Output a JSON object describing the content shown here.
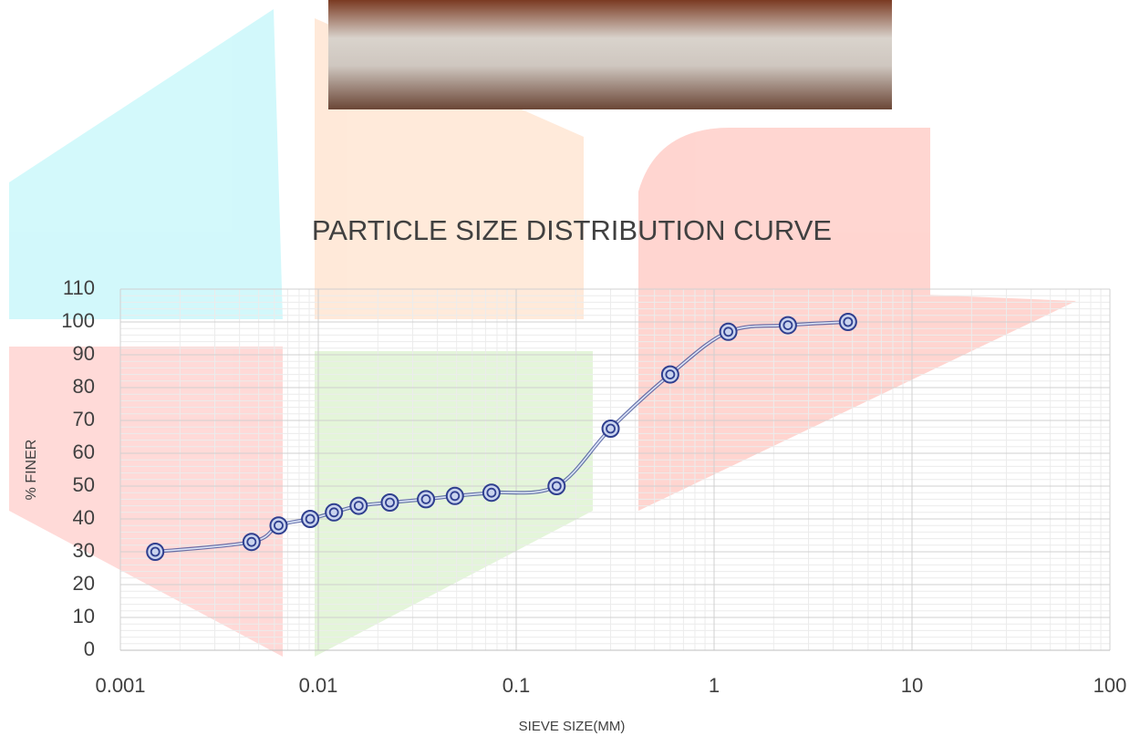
{
  "chart_data": {
    "type": "line",
    "title": "PARTICLE SIZE DISTRIBUTION CURVE",
    "x_label": "SIEVE SIZE(MM)",
    "y_label": "% FINER",
    "x_scale": "log",
    "grid": true,
    "x": [
      0.0015,
      0.0046,
      0.0063,
      0.0091,
      0.012,
      0.016,
      0.023,
      0.035,
      0.049,
      0.075,
      0.16,
      0.3,
      0.6,
      1.18,
      2.36,
      4.75
    ],
    "series": [
      {
        "color": "#2f3f8f",
        "values": [
          30,
          33,
          38,
          40,
          42,
          44,
          45,
          46,
          47,
          48,
          50,
          67.5,
          84,
          97,
          99,
          100
        ]
      }
    ],
    "xlim": [
      0.001,
      100
    ],
    "xticks": [
      0.001,
      0.01,
      0.1,
      1,
      10,
      100
    ],
    "ylim": [
      0,
      110
    ],
    "yticks": [
      0,
      10,
      20,
      30,
      40,
      50,
      60,
      70,
      80,
      90,
      100,
      110
    ]
  }
}
